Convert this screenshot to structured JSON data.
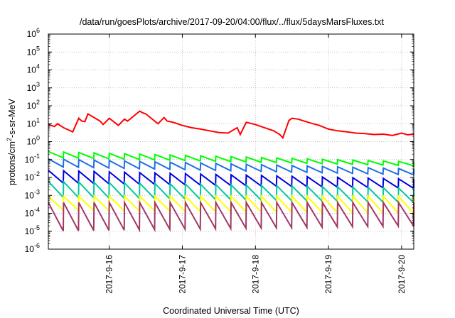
{
  "chart_data": {
    "type": "line",
    "title": "/data/run/goesPlots/archive/2017-09-20/04:00/flux/../flux/5daysMarsFluxes.txt",
    "xlabel": "Coordinated Universal Time (UTC)",
    "ylabel": "protons/cm2-s-sr-MeV",
    "y_scale": "log",
    "ylim": [
      1e-06,
      1000000.0
    ],
    "xlim": [
      "2017-09-15T04:00",
      "2017-09-20T04:00"
    ],
    "grid": true,
    "legend": "none",
    "x_ticks": [
      "2017-9-16",
      "2017-9-17",
      "2017-9-18",
      "2017-9-19",
      "2017-9-20"
    ],
    "y_ticks": [
      {
        "base": "10",
        "exp": "-6"
      },
      {
        "base": "10",
        "exp": "-5"
      },
      {
        "base": "10",
        "exp": "-4"
      },
      {
        "base": "10",
        "exp": "-3"
      },
      {
        "base": "10",
        "exp": "-2"
      },
      {
        "base": "10",
        "exp": "-1"
      },
      {
        "base": "10",
        "exp": "0"
      },
      {
        "base": "10",
        "exp": "1"
      },
      {
        "base": "10",
        "exp": "2"
      },
      {
        "base": "10",
        "exp": "3"
      },
      {
        "base": "10",
        "exp": "4"
      },
      {
        "base": "10",
        "exp": "5"
      },
      {
        "base": "10",
        "exp": "6"
      }
    ],
    "series": [
      {
        "color": "#ff0000",
        "x": [
          "2017-09-15T04:00",
          "2017-09-15T06:00",
          "2017-09-15T07:00",
          "2017-09-15T09:00",
          "2017-09-15T12:00",
          "2017-09-15T14:00",
          "2017-09-15T15:00",
          "2017-09-15T16:00",
          "2017-09-15T17:00",
          "2017-09-15T18:00",
          "2017-09-15T21:00",
          "2017-09-15T22:00",
          "2017-09-16T00:00",
          "2017-09-16T03:00",
          "2017-09-16T05:00",
          "2017-09-16T06:00",
          "2017-09-16T10:00",
          "2017-09-16T11:00",
          "2017-09-16T12:00",
          "2017-09-16T16:00",
          "2017-09-16T18:00",
          "2017-09-16T19:00",
          "2017-09-16T21:00",
          "2017-09-17T00:00",
          "2017-09-17T03:00",
          "2017-09-17T06:00",
          "2017-09-17T09:00",
          "2017-09-17T12:00",
          "2017-09-17T15:00",
          "2017-09-17T18:00",
          "2017-09-17T19:00",
          "2017-09-17T21:00",
          "2017-09-18T00:00",
          "2017-09-18T03:00",
          "2017-09-18T06:00",
          "2017-09-18T08:00",
          "2017-09-18T09:00",
          "2017-09-18T11:00",
          "2017-09-18T12:00",
          "2017-09-18T14:00",
          "2017-09-18T16:00",
          "2017-09-18T18:00",
          "2017-09-18T21:00",
          "2017-09-19T00:00",
          "2017-09-19T03:00",
          "2017-09-19T06:00",
          "2017-09-19T09:00",
          "2017-09-19T12:00",
          "2017-09-19T15:00",
          "2017-09-19T18:00",
          "2017-09-19T21:00",
          "2017-09-20T00:00",
          "2017-09-20T02:00",
          "2017-09-20T04:00"
        ],
        "y": [
          9,
          7,
          10,
          6,
          3.5,
          20,
          14,
          13,
          35,
          28,
          14,
          9,
          20,
          8,
          18,
          14,
          50,
          40,
          35,
          10,
          22,
          14,
          12,
          8,
          6,
          5,
          4,
          3.2,
          3,
          6,
          2.5,
          12,
          9,
          6,
          4,
          2.5,
          1.6,
          15,
          20,
          18,
          14,
          11,
          8,
          5,
          4,
          3.5,
          3,
          2.8,
          2.5,
          2.6,
          2.2,
          3.0,
          2.4,
          2.6
        ]
      },
      {
        "color": "#00ff00",
        "shape": "sawtooth",
        "period_hours": 5,
        "start_high": 0.28,
        "start_low": 0.13,
        "end_high": 0.075,
        "end_low": 0.045
      },
      {
        "color": "#1e6fe6",
        "shape": "sawtooth",
        "period_hours": 5,
        "start_high": 0.11,
        "start_low": 0.04,
        "end_high": 0.03,
        "end_low": 0.014
      },
      {
        "color": "#0000e0",
        "shape": "sawtooth",
        "period_hours": 5,
        "start_high": 0.025,
        "start_low": 0.005,
        "end_high": 0.008,
        "end_low": 0.0025
      },
      {
        "color": "#00c8a0",
        "shape": "sawtooth",
        "period_hours": 5,
        "start_high": 0.006,
        "start_low": 0.0008,
        "end_high": 0.0025,
        "end_low": 0.0004
      },
      {
        "color": "#ffff00",
        "shape": "sawtooth",
        "period_hours": 5,
        "start_high": 0.0009,
        "start_low": 0.00015,
        "end_high": 0.0009,
        "end_low": 0.0001
      },
      {
        "color": "#a03868",
        "shape": "sawtooth",
        "period_hours": 5,
        "start_high": 0.0004,
        "start_low": 1e-05,
        "end_high": 0.0004,
        "end_low": 2e-05
      }
    ]
  }
}
